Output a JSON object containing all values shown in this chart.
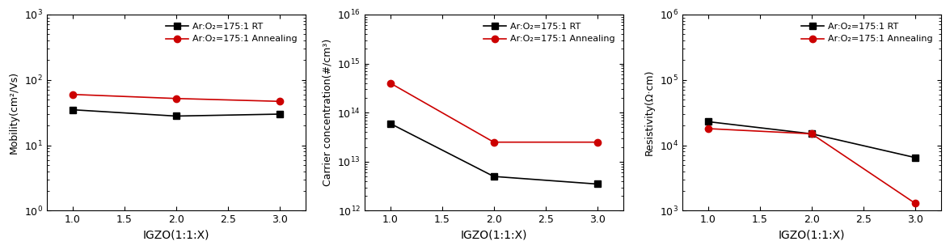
{
  "x": [
    1.0,
    2.0,
    3.0
  ],
  "mobility_rt": [
    35,
    28,
    30
  ],
  "mobility_ann": [
    60,
    52,
    47
  ],
  "carrier_rt": [
    60000000000000.0,
    5000000000000.0,
    3500000000000.0
  ],
  "carrier_ann": [
    400000000000000.0,
    25000000000000.0,
    25000000000000.0
  ],
  "resistivity_rt": [
    23000.0,
    15000.0,
    6500
  ],
  "resistivity_ann": [
    18000.0,
    15000.0,
    1300
  ],
  "ylabel1": "Mobility(cm²/Vs)",
  "ylabel2": "Carrier concentration(#/cm³)",
  "ylabel3": "Resistivity(Ω·cm)",
  "xlabel": "IGZO(1:1:X)",
  "legend_rt": "Ar:O₂=175:1 RT",
  "legend_ann": "Ar:O₂=175:1 Annealing",
  "ylim1": [
    1,
    1000
  ],
  "ylim2": [
    1000000000000.0,
    1e+16
  ],
  "ylim3": [
    1000.0,
    1000000.0
  ],
  "color_rt": "#000000",
  "color_ann": "#cc0000",
  "xticks": [
    1.0,
    1.5,
    2.0,
    2.5,
    3.0
  ]
}
